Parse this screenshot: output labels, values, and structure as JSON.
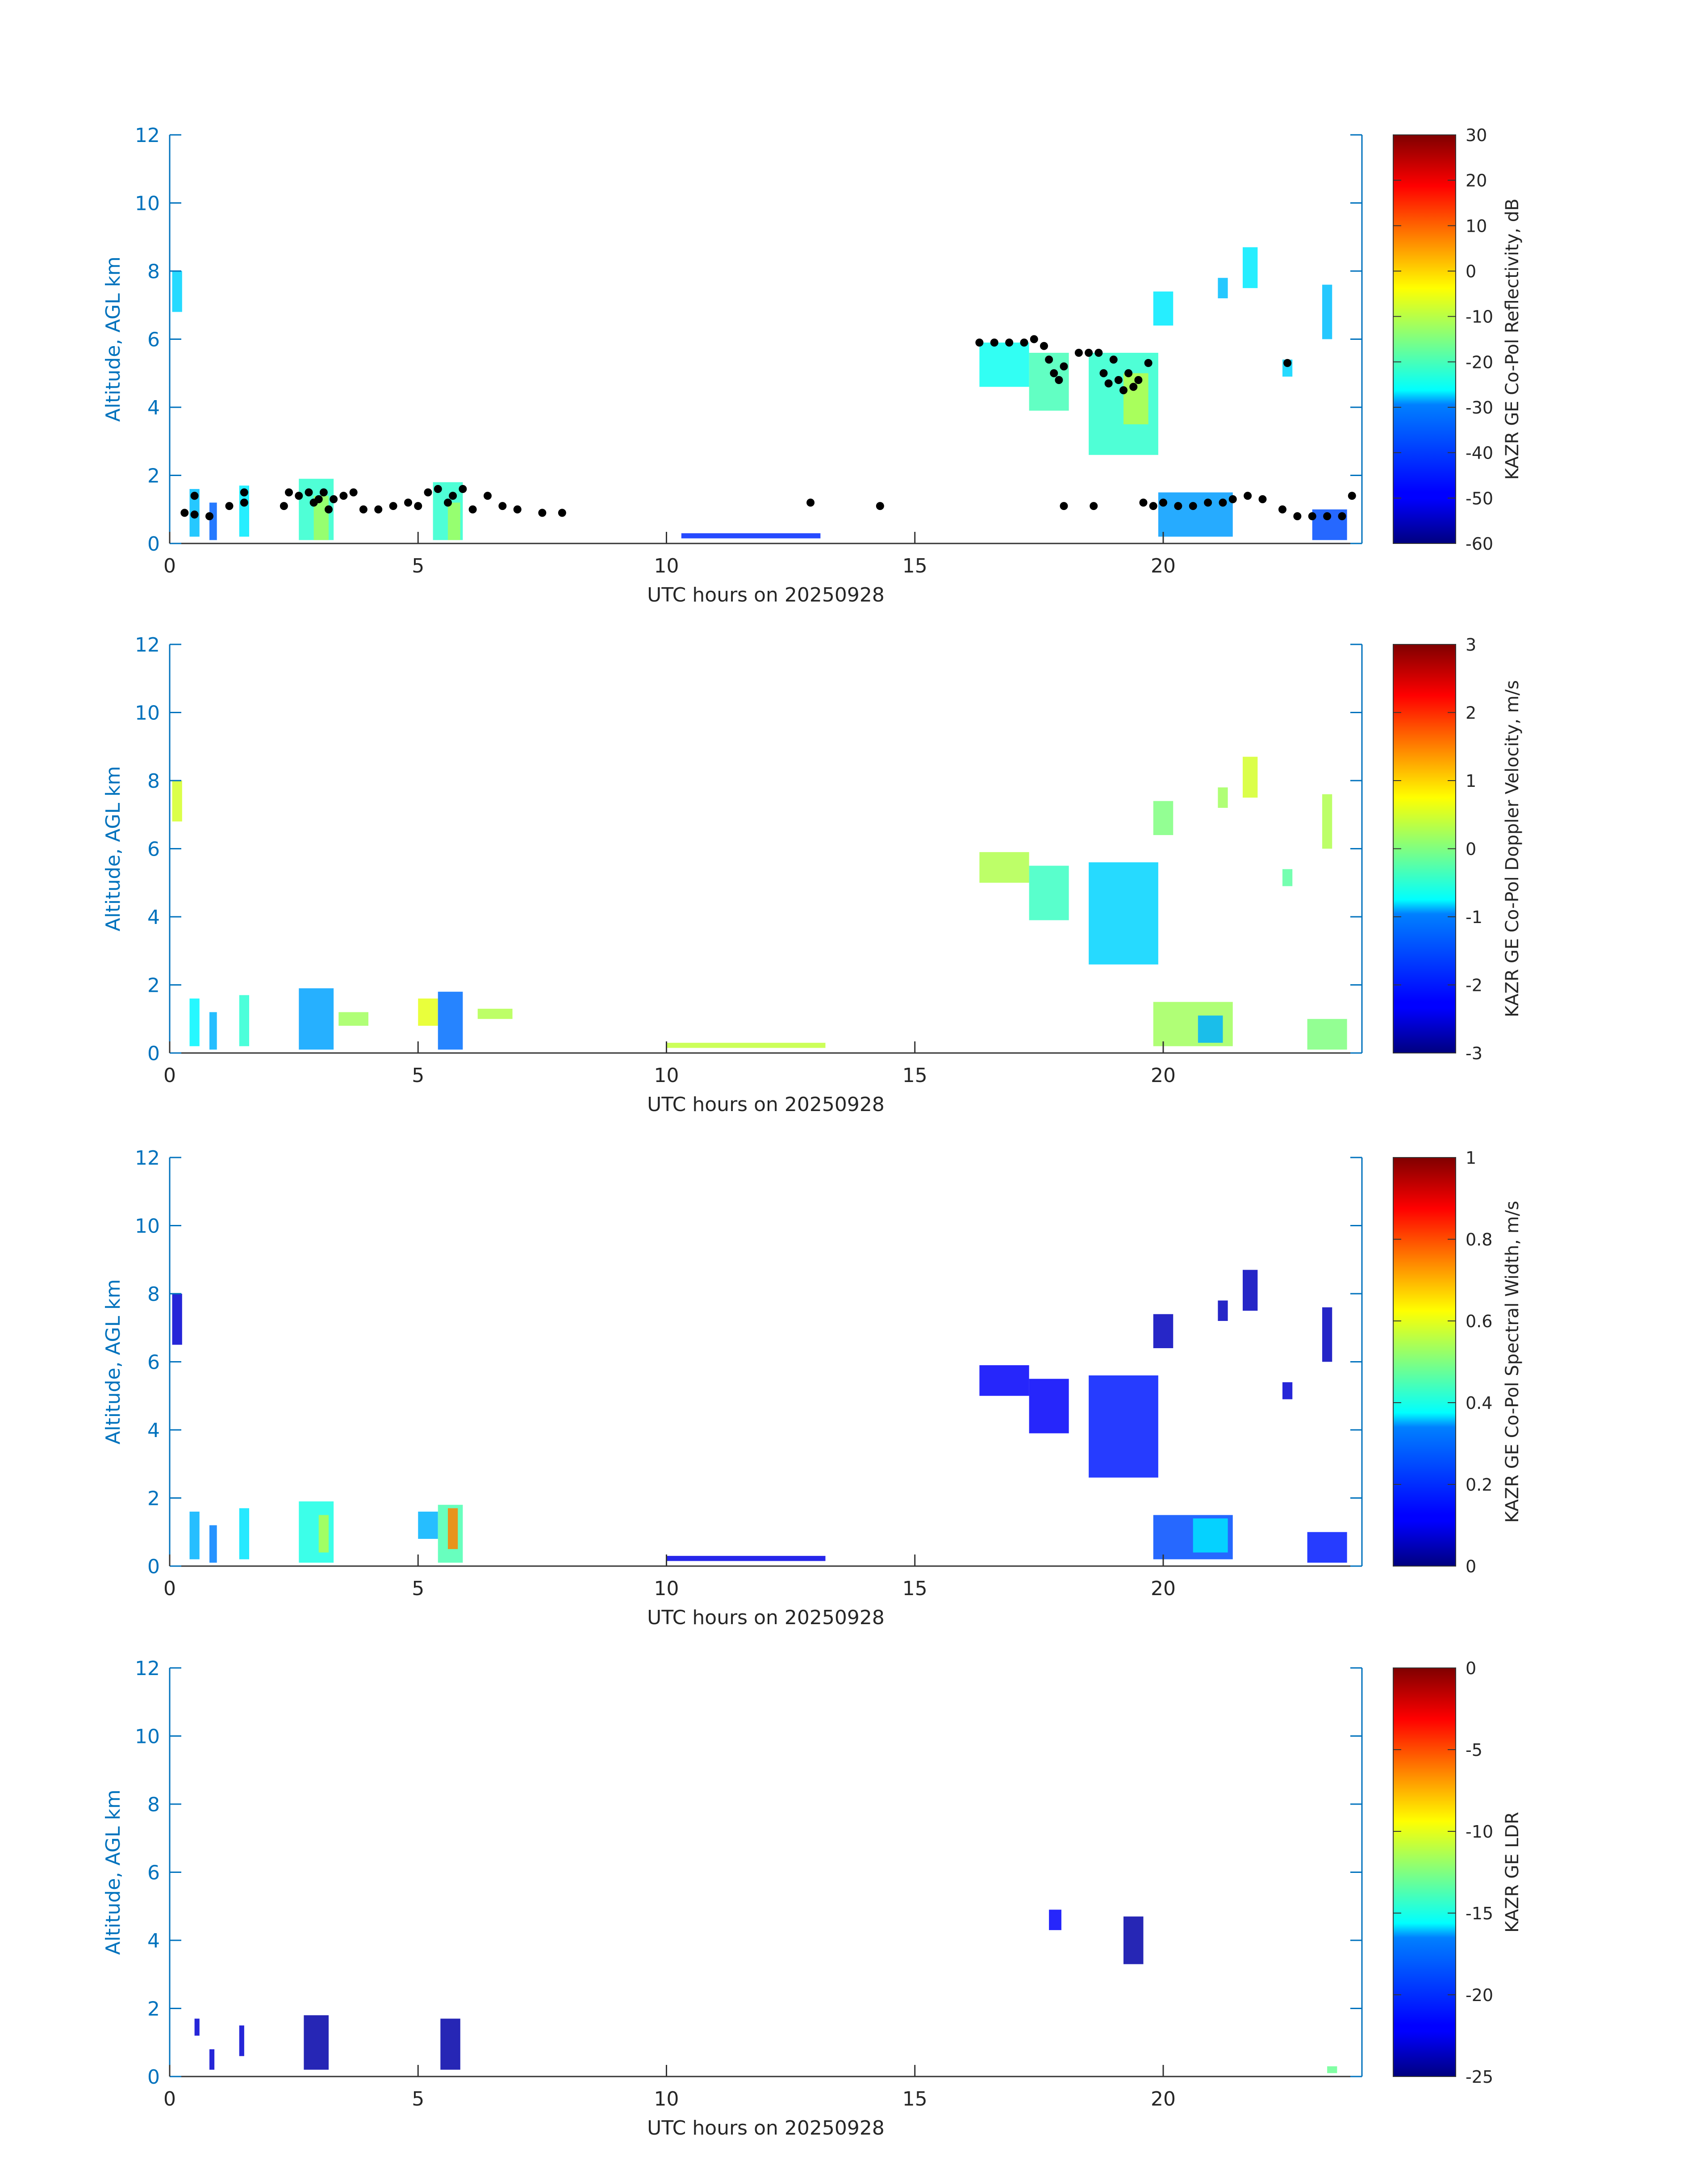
{
  "chart_data": [
    {
      "type": "heatmap",
      "title": "",
      "xlabel": "UTC hours on 20250928",
      "ylabel": "Altitude, AGL km",
      "xlim": [
        0,
        24
      ],
      "ylim": [
        0,
        12
      ],
      "xticks": [
        0,
        5,
        10,
        15,
        20
      ],
      "yticks": [
        0,
        2,
        4,
        6,
        8,
        10,
        12
      ],
      "colorbar": {
        "label": "KAZR GE Co-Pol Reflectivity, dB",
        "range": [
          -60,
          30
        ],
        "ticks": [
          30,
          20,
          10,
          0,
          -10,
          -20,
          -30,
          -40,
          -50,
          -60
        ],
        "colormap": "jet"
      },
      "regions": [
        {
          "x": [
            0.05,
            0.25
          ],
          "y": [
            6.8,
            8.0
          ],
          "value": -30
        },
        {
          "x": [
            0.4,
            0.6
          ],
          "y": [
            0.2,
            1.6
          ],
          "value": -32
        },
        {
          "x": [
            0.8,
            0.95
          ],
          "y": [
            0.1,
            1.2
          ],
          "value": -40
        },
        {
          "x": [
            1.4,
            1.6
          ],
          "y": [
            0.2,
            1.7
          ],
          "value": -28
        },
        {
          "x": [
            2.6,
            3.3
          ],
          "y": [
            0.1,
            1.9
          ],
          "value": -22
        },
        {
          "x": [
            2.9,
            3.2
          ],
          "y": [
            0.1,
            1.4
          ],
          "value": -12
        },
        {
          "x": [
            5.3,
            5.9
          ],
          "y": [
            0.1,
            1.8
          ],
          "value": -22
        },
        {
          "x": [
            5.6,
            5.85
          ],
          "y": [
            0.1,
            1.2
          ],
          "value": -12
        },
        {
          "x": [
            10.3,
            13.1
          ],
          "y": [
            0.15,
            0.3
          ],
          "value": -45
        },
        {
          "x": [
            16.3,
            17.3
          ],
          "y": [
            4.6,
            5.9
          ],
          "value": -25
        },
        {
          "x": [
            17.3,
            18.1
          ],
          "y": [
            3.9,
            5.6
          ],
          "value": -20
        },
        {
          "x": [
            18.5,
            19.9
          ],
          "y": [
            2.6,
            5.6
          ],
          "value": -22
        },
        {
          "x": [
            19.2,
            19.7
          ],
          "y": [
            3.5,
            5.0
          ],
          "value": -10
        },
        {
          "x": [
            19.8,
            20.2
          ],
          "y": [
            6.4,
            7.4
          ],
          "value": -28
        },
        {
          "x": [
            21.1,
            21.3
          ],
          "y": [
            7.2,
            7.8
          ],
          "value": -32
        },
        {
          "x": [
            21.6,
            21.9
          ],
          "y": [
            7.5,
            8.7
          ],
          "value": -28
        },
        {
          "x": [
            22.4,
            22.6
          ],
          "y": [
            4.9,
            5.4
          ],
          "value": -30
        },
        {
          "x": [
            23.2,
            23.4
          ],
          "y": [
            6.0,
            7.6
          ],
          "value": -32
        },
        {
          "x": [
            19.9,
            21.4
          ],
          "y": [
            0.2,
            1.5
          ],
          "value": -35
        },
        {
          "x": [
            23.0,
            23.7
          ],
          "y": [
            0.1,
            1.0
          ],
          "value": -42
        }
      ],
      "points": [
        {
          "x": 0.3,
          "y": 0.9
        },
        {
          "x": 0.5,
          "y": 0.85
        },
        {
          "x": 0.5,
          "y": 1.4
        },
        {
          "x": 0.8,
          "y": 0.8
        },
        {
          "x": 1.2,
          "y": 1.1
        },
        {
          "x": 1.5,
          "y": 1.5
        },
        {
          "x": 1.5,
          "y": 1.2
        },
        {
          "x": 2.3,
          "y": 1.1
        },
        {
          "x": 2.4,
          "y": 1.5
        },
        {
          "x": 2.6,
          "y": 1.4
        },
        {
          "x": 2.8,
          "y": 1.5
        },
        {
          "x": 2.9,
          "y": 1.2
        },
        {
          "x": 3.0,
          "y": 1.3
        },
        {
          "x": 3.1,
          "y": 1.5
        },
        {
          "x": 3.2,
          "y": 1.0
        },
        {
          "x": 3.3,
          "y": 1.3
        },
        {
          "x": 3.5,
          "y": 1.4
        },
        {
          "x": 3.7,
          "y": 1.5
        },
        {
          "x": 3.9,
          "y": 1.0
        },
        {
          "x": 4.2,
          "y": 1.0
        },
        {
          "x": 4.5,
          "y": 1.1
        },
        {
          "x": 4.8,
          "y": 1.2
        },
        {
          "x": 5.0,
          "y": 1.1
        },
        {
          "x": 5.2,
          "y": 1.5
        },
        {
          "x": 5.4,
          "y": 1.6
        },
        {
          "x": 5.6,
          "y": 1.2
        },
        {
          "x": 5.7,
          "y": 1.4
        },
        {
          "x": 5.9,
          "y": 1.6
        },
        {
          "x": 6.1,
          "y": 1.0
        },
        {
          "x": 6.4,
          "y": 1.4
        },
        {
          "x": 6.7,
          "y": 1.1
        },
        {
          "x": 7.0,
          "y": 1.0
        },
        {
          "x": 7.5,
          "y": 0.9
        },
        {
          "x": 7.9,
          "y": 0.9
        },
        {
          "x": 12.9,
          "y": 1.2
        },
        {
          "x": 14.3,
          "y": 1.1
        },
        {
          "x": 16.3,
          "y": 5.9
        },
        {
          "x": 16.6,
          "y": 5.9
        },
        {
          "x": 16.9,
          "y": 5.9
        },
        {
          "x": 17.2,
          "y": 5.9
        },
        {
          "x": 17.4,
          "y": 6.0
        },
        {
          "x": 17.6,
          "y": 5.8
        },
        {
          "x": 17.7,
          "y": 5.4
        },
        {
          "x": 17.8,
          "y": 5.0
        },
        {
          "x": 17.9,
          "y": 4.8
        },
        {
          "x": 18.0,
          "y": 5.2
        },
        {
          "x": 18.3,
          "y": 5.6
        },
        {
          "x": 18.5,
          "y": 5.6
        },
        {
          "x": 18.7,
          "y": 5.6
        },
        {
          "x": 18.8,
          "y": 5.0
        },
        {
          "x": 18.9,
          "y": 4.7
        },
        {
          "x": 19.0,
          "y": 5.4
        },
        {
          "x": 19.1,
          "y": 4.8
        },
        {
          "x": 19.2,
          "y": 4.5
        },
        {
          "x": 19.3,
          "y": 5.0
        },
        {
          "x": 19.4,
          "y": 4.6
        },
        {
          "x": 19.5,
          "y": 4.8
        },
        {
          "x": 19.7,
          "y": 5.3
        },
        {
          "x": 18.0,
          "y": 1.1
        },
        {
          "x": 18.6,
          "y": 1.1
        },
        {
          "x": 19.6,
          "y": 1.2
        },
        {
          "x": 19.8,
          "y": 1.1
        },
        {
          "x": 20.0,
          "y": 1.2
        },
        {
          "x": 20.3,
          "y": 1.1
        },
        {
          "x": 20.6,
          "y": 1.1
        },
        {
          "x": 20.9,
          "y": 1.2
        },
        {
          "x": 21.2,
          "y": 1.2
        },
        {
          "x": 21.4,
          "y": 1.3
        },
        {
          "x": 21.7,
          "y": 1.4
        },
        {
          "x": 22.0,
          "y": 1.3
        },
        {
          "x": 22.4,
          "y": 1.0
        },
        {
          "x": 22.5,
          "y": 5.3
        },
        {
          "x": 22.7,
          "y": 0.8
        },
        {
          "x": 23.0,
          "y": 0.8
        },
        {
          "x": 23.3,
          "y": 0.8
        },
        {
          "x": 23.6,
          "y": 0.8
        },
        {
          "x": 23.8,
          "y": 1.4
        }
      ]
    },
    {
      "type": "heatmap",
      "title": "",
      "xlabel": "UTC hours on 20250928",
      "ylabel": "Altitude, AGL km",
      "xlim": [
        0,
        24
      ],
      "ylim": [
        0,
        12
      ],
      "xticks": [
        0,
        5,
        10,
        15,
        20
      ],
      "yticks": [
        0,
        2,
        4,
        6,
        8,
        10,
        12
      ],
      "colorbar": {
        "label": "KAZR GE Co-Pol Doppler Velocity, m/s",
        "range": [
          -3,
          3
        ],
        "ticks": [
          3,
          2,
          1,
          0,
          -1,
          -2,
          -3
        ],
        "colormap": "jet"
      },
      "regions": [
        {
          "x": [
            0.05,
            0.25
          ],
          "y": [
            6.8,
            8.0
          ],
          "value": 0.5
        },
        {
          "x": [
            0.4,
            0.6
          ],
          "y": [
            0.2,
            1.6
          ],
          "value": -0.8
        },
        {
          "x": [
            0.8,
            0.95
          ],
          "y": [
            0.1,
            1.2
          ],
          "value": -1.2
        },
        {
          "x": [
            1.4,
            1.6
          ],
          "y": [
            0.2,
            1.7
          ],
          "value": -0.5
        },
        {
          "x": [
            2.6,
            3.3
          ],
          "y": [
            0.1,
            1.9
          ],
          "value": -1.3
        },
        {
          "x": [
            3.4,
            4.0
          ],
          "y": [
            0.8,
            1.2
          ],
          "value": 0.2
        },
        {
          "x": [
            5.0,
            5.4
          ],
          "y": [
            0.8,
            1.6
          ],
          "value": 0.6
        },
        {
          "x": [
            5.4,
            5.9
          ],
          "y": [
            0.1,
            1.8
          ],
          "value": -1.6
        },
        {
          "x": [
            6.2,
            6.9
          ],
          "y": [
            1.0,
            1.3
          ],
          "value": 0.3
        },
        {
          "x": [
            10.0,
            13.2
          ],
          "y": [
            0.15,
            0.3
          ],
          "value": 0.4
        },
        {
          "x": [
            16.3,
            17.3
          ],
          "y": [
            5.0,
            5.9
          ],
          "value": 0.3
        },
        {
          "x": [
            17.3,
            18.1
          ],
          "y": [
            3.9,
            5.5
          ],
          "value": -0.4
        },
        {
          "x": [
            18.5,
            19.9
          ],
          "y": [
            2.6,
            5.6
          ],
          "value": -1.0
        },
        {
          "x": [
            19.8,
            20.2
          ],
          "y": [
            6.4,
            7.4
          ],
          "value": 0.0
        },
        {
          "x": [
            21.1,
            21.3
          ],
          "y": [
            7.2,
            7.8
          ],
          "value": 0.2
        },
        {
          "x": [
            21.6,
            21.9
          ],
          "y": [
            7.5,
            8.7
          ],
          "value": 0.5
        },
        {
          "x": [
            22.4,
            22.6
          ],
          "y": [
            4.9,
            5.4
          ],
          "value": -0.2
        },
        {
          "x": [
            23.2,
            23.4
          ],
          "y": [
            6.0,
            7.6
          ],
          "value": 0.3
        },
        {
          "x": [
            19.8,
            21.4
          ],
          "y": [
            0.2,
            1.5
          ],
          "value": 0.2
        },
        {
          "x": [
            20.7,
            21.2
          ],
          "y": [
            0.3,
            1.1
          ],
          "value": -1.2
        },
        {
          "x": [
            22.9,
            23.7
          ],
          "y": [
            0.1,
            1.0
          ],
          "value": 0.0
        }
      ],
      "points": []
    },
    {
      "type": "heatmap",
      "title": "",
      "xlabel": "UTC hours on 20250928",
      "ylabel": "Altitude, AGL km",
      "xlim": [
        0,
        24
      ],
      "ylim": [
        0,
        12
      ],
      "xticks": [
        0,
        5,
        10,
        15,
        20
      ],
      "yticks": [
        0,
        2,
        4,
        6,
        8,
        10,
        12
      ],
      "colorbar": {
        "label": "KAZR GE Co-Pol Spectral Width, m/s",
        "range": [
          0,
          1
        ],
        "ticks": [
          1,
          0.8,
          0.6,
          0.4,
          0.2,
          0
        ],
        "colormap": "jet"
      },
      "regions": [
        {
          "x": [
            0.05,
            0.25
          ],
          "y": [
            6.5,
            8.0
          ],
          "value": 0.08
        },
        {
          "x": [
            0.4,
            0.6
          ],
          "y": [
            0.2,
            1.6
          ],
          "value": 0.3
        },
        {
          "x": [
            0.8,
            0.95
          ],
          "y": [
            0.1,
            1.2
          ],
          "value": 0.25
        },
        {
          "x": [
            1.4,
            1.6
          ],
          "y": [
            0.2,
            1.7
          ],
          "value": 0.35
        },
        {
          "x": [
            2.6,
            3.3
          ],
          "y": [
            0.1,
            1.9
          ],
          "value": 0.4
        },
        {
          "x": [
            3.0,
            3.2
          ],
          "y": [
            0.4,
            1.5
          ],
          "value": 0.55
        },
        {
          "x": [
            5.0,
            5.4
          ],
          "y": [
            0.8,
            1.6
          ],
          "value": 0.3
        },
        {
          "x": [
            5.4,
            5.9
          ],
          "y": [
            0.1,
            1.8
          ],
          "value": 0.45
        },
        {
          "x": [
            5.6,
            5.8
          ],
          "y": [
            0.5,
            1.7
          ],
          "value": 0.75
        },
        {
          "x": [
            10.0,
            13.2
          ],
          "y": [
            0.15,
            0.3
          ],
          "value": 0.1
        },
        {
          "x": [
            16.3,
            17.3
          ],
          "y": [
            5.0,
            5.9
          ],
          "value": 0.12
        },
        {
          "x": [
            17.3,
            18.1
          ],
          "y": [
            3.9,
            5.5
          ],
          "value": 0.12
        },
        {
          "x": [
            18.5,
            19.9
          ],
          "y": [
            2.6,
            5.6
          ],
          "value": 0.15
        },
        {
          "x": [
            19.8,
            20.2
          ],
          "y": [
            6.4,
            7.4
          ],
          "value": 0.06
        },
        {
          "x": [
            21.1,
            21.3
          ],
          "y": [
            7.2,
            7.8
          ],
          "value": 0.06
        },
        {
          "x": [
            21.6,
            21.9
          ],
          "y": [
            7.5,
            8.7
          ],
          "value": 0.06
        },
        {
          "x": [
            22.4,
            22.6
          ],
          "y": [
            4.9,
            5.4
          ],
          "value": 0.08
        },
        {
          "x": [
            23.2,
            23.4
          ],
          "y": [
            6.0,
            7.6
          ],
          "value": 0.06
        },
        {
          "x": [
            19.8,
            21.4
          ],
          "y": [
            0.2,
            1.5
          ],
          "value": 0.2
        },
        {
          "x": [
            20.6,
            21.3
          ],
          "y": [
            0.4,
            1.4
          ],
          "value": 0.35
        },
        {
          "x": [
            22.9,
            23.7
          ],
          "y": [
            0.1,
            1.0
          ],
          "value": 0.15
        }
      ],
      "points": []
    },
    {
      "type": "heatmap",
      "title": "",
      "xlabel": "UTC hours on 20250928",
      "ylabel": "Altitude, AGL km",
      "xlim": [
        0,
        24
      ],
      "ylim": [
        0,
        12
      ],
      "xticks": [
        0,
        5,
        10,
        15,
        20
      ],
      "yticks": [
        0,
        2,
        4,
        6,
        8,
        10,
        12
      ],
      "colorbar": {
        "label": "KAZR GE LDR",
        "range": [
          -25,
          0
        ],
        "ticks": [
          0,
          -5,
          -10,
          -15,
          -20,
          -25
        ],
        "colormap": "jet"
      },
      "regions": [
        {
          "x": [
            0.5,
            0.6
          ],
          "y": [
            1.2,
            1.7
          ],
          "value": -23
        },
        {
          "x": [
            0.8,
            0.9
          ],
          "y": [
            0.2,
            0.8
          ],
          "value": -23
        },
        {
          "x": [
            1.4,
            1.5
          ],
          "y": [
            0.6,
            1.5
          ],
          "value": -23
        },
        {
          "x": [
            2.7,
            3.2
          ],
          "y": [
            0.2,
            1.8
          ],
          "value": -24
        },
        {
          "x": [
            5.45,
            5.85
          ],
          "y": [
            0.2,
            1.7
          ],
          "value": -24
        },
        {
          "x": [
            17.7,
            17.95
          ],
          "y": [
            4.3,
            4.9
          ],
          "value": -22
        },
        {
          "x": [
            19.2,
            19.6
          ],
          "y": [
            3.3,
            4.7
          ],
          "value": -24
        },
        {
          "x": [
            23.3,
            23.5
          ],
          "y": [
            0.1,
            0.3
          ],
          "value": -13
        }
      ],
      "points": []
    }
  ]
}
